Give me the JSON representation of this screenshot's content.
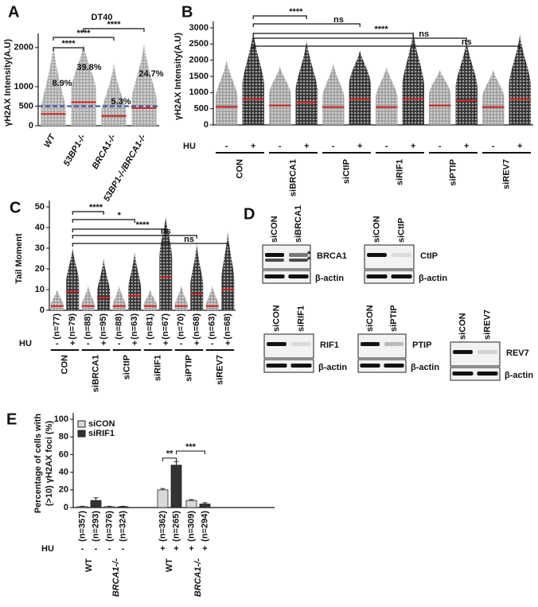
{
  "chart_data": [
    {
      "panel": "A",
      "type": "dotplot",
      "title": "DT40",
      "y_label": "γH2AX Intensity(A.U)",
      "categories": [
        "WT",
        "53BP1-/-",
        "BRCA1-/-",
        "53BP1-/-/BRCA1-/-"
      ],
      "series": [
        {
          "color": "#a8a8a8",
          "values": [
            300,
            600,
            250,
            450
          ],
          "max": [
            2100,
            2100,
            1600,
            2100
          ]
        }
      ],
      "threshold": 500,
      "threshold_color": "#2f4fa0",
      "annotations": [
        "8.9%",
        "39.8%",
        "5.3%",
        "24.7%"
      ],
      "annotation_color": "#3b5ba5",
      "ylim": [
        0,
        2200
      ],
      "yticks": [
        0,
        500,
        1000,
        2000
      ],
      "brackets": [
        "****",
        "****",
        "****"
      ]
    },
    {
      "panel": "B",
      "type": "dotplot",
      "y_label": "γH2AX Intensity(A.U)",
      "hu_label": "HU",
      "categories": [
        "CON",
        "siBRCA1",
        "siCtIP",
        "siRIF1",
        "siPTIP",
        "siREV7"
      ],
      "series": [
        {
          "name": "-",
          "color": "#a0a0a0",
          "values": [
            560,
            600,
            550,
            550,
            600,
            550
          ],
          "max": [
            2000,
            1800,
            1900,
            1800,
            1700,
            1700
          ]
        },
        {
          "name": "+",
          "color": "#303030",
          "values": [
            800,
            700,
            800,
            800,
            750,
            800
          ],
          "max": [
            2900,
            2600,
            2300,
            2900,
            2600,
            2800
          ]
        }
      ],
      "ylim": [
        0,
        3000
      ],
      "yticks": [
        0,
        500,
        1000,
        1500,
        2000,
        2500,
        3000
      ],
      "brackets": [
        "****",
        "ns",
        "****",
        "ns",
        "ns"
      ]
    },
    {
      "panel": "C",
      "type": "dotplot",
      "y_label": "Tail Moment",
      "hu_label": "HU",
      "categories": [
        "CON",
        "siBRCA1",
        "siCtIP",
        "siRIF1",
        "siPTIP",
        "siREV7"
      ],
      "series": [
        {
          "name": "-",
          "color": "#a0a0a0",
          "values": [
            2,
            2,
            2,
            2,
            2,
            2
          ],
          "max": [
            10,
            12,
            12,
            10,
            12,
            12
          ],
          "n_labels": [
            "(n=77)",
            "(n=88)",
            "(n=88)",
            "(n=81)",
            "(n=70)",
            "(n=63)"
          ]
        },
        {
          "name": "+",
          "color": "#303030",
          "values": [
            9,
            6,
            7,
            16,
            8,
            10
          ],
          "max": [
            30,
            25,
            28,
            45,
            32,
            38
          ],
          "n_labels": [
            "(n=79)",
            "(n=95)",
            "(n=63)",
            "(n=67)",
            "(n=68)",
            "(n=68)"
          ]
        }
      ],
      "ylim": [
        0,
        50
      ],
      "yticks": [
        0,
        10,
        20,
        30,
        40,
        50
      ],
      "brackets": [
        "****",
        "*",
        "****",
        "ns",
        "ns"
      ]
    },
    {
      "panel": "E",
      "type": "bar",
      "y_label": [
        "Percentage of cells with",
        "(>10) γH2AX foci (%)"
      ],
      "hu_label": "HU",
      "categories": [
        "WT",
        "BRCA1-/-",
        "WT",
        "BRCA1-/-"
      ],
      "hu": [
        "-",
        "-",
        "+",
        "+"
      ],
      "series": [
        {
          "name": "siCON",
          "color": "#d9d9d9",
          "values": [
            1,
            1,
            20,
            8
          ],
          "errors": [
            0.5,
            0.5,
            1.5,
            1
          ],
          "n_labels": [
            "(n=357)",
            "(n=376)",
            "(n=362)",
            "(n=309)"
          ]
        },
        {
          "name": "siRIF1",
          "color": "#333333",
          "values": [
            8,
            1,
            48,
            4
          ],
          "errors": [
            3,
            0.5,
            4,
            1.5
          ],
          "n_labels": [
            "(n=293)",
            "(n=324)",
            "(n=265)",
            "(n=294)"
          ]
        }
      ],
      "ylim": [
        0,
        100
      ],
      "yticks": [
        0,
        20,
        40,
        60,
        80,
        100
      ],
      "brackets": [
        "**",
        "***"
      ],
      "legend": "upper left"
    }
  ],
  "figure_d": {
    "panel": "D",
    "blots": [
      {
        "lanes": [
          "siCON",
          "siBRCA1"
        ],
        "target": "BRCA1",
        "control": "β-actin",
        "annotations": [
          "*",
          "*"
        ]
      },
      {
        "lanes": [
          "siCON",
          "siCtIP"
        ],
        "target": "CtIP",
        "control": "β-actin"
      },
      {
        "lanes": [
          "siCON",
          "siRIF1"
        ],
        "target": "RIF1",
        "control": "β-actin"
      },
      {
        "lanes": [
          "siCON",
          "siPTIP"
        ],
        "target": "PTIP",
        "control": "β-actin"
      },
      {
        "lanes": [
          "siCON",
          "siREV7"
        ],
        "target": "REV7",
        "control": "β-actin"
      }
    ]
  }
}
